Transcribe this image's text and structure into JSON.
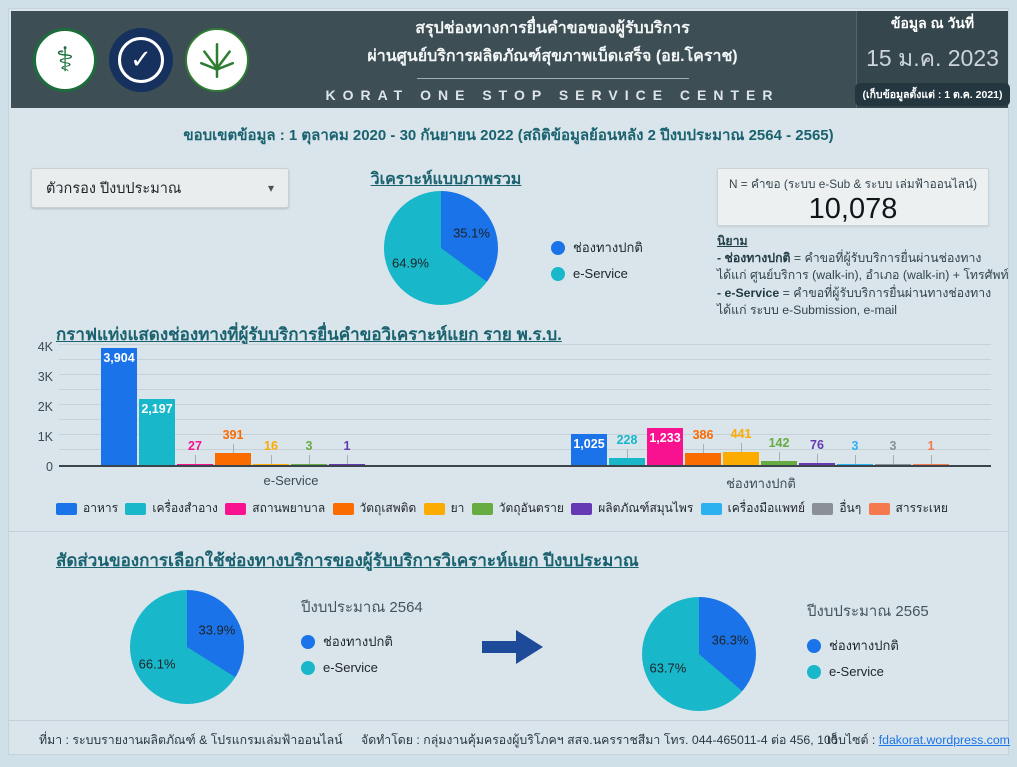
{
  "header": {
    "title_line1": "สรุปช่องทางการยื่นคำขอของผู้รับบริการ",
    "title_line2": "ผ่านศูนย์บริการผลิตภัณฑ์สุขภาพเบ็ดเสร็จ (อย.โคราช)",
    "title_line3": "KORAT ONE STOP SERVICE CENTER",
    "date_label": "ข้อมูล ณ วันที่",
    "date_value": "15 ม.ค. 2023",
    "date_note": "(เก็บข้อมูลตั้งแต่ : 1 ต.ค. 2021)",
    "logos": [
      {
        "name": "moph-logo"
      },
      {
        "name": "fda-logo"
      },
      {
        "name": "cannabis-center-logo"
      }
    ]
  },
  "scope_text": "ขอบเขตข้อมูล : 1 ตุลาคม 2020 - 30 กันยายน 2022 (สถิติข้อมูลย้อนหลัง 2 ปีงบประมาณ 2564 - 2565)",
  "filter": {
    "label": "ตัวกรอง ปีงบประมาณ",
    "caret": "▾"
  },
  "overview": {
    "n_label": "N = คำขอ (ระบบ e-Sub & ระบบ เล่มฟ้าออนไลน์)",
    "n_value": "10,078",
    "definitions": {
      "heading": "นิยาม",
      "item1_term": "- ช่องทางปกติ",
      "item1_text": " = คำขอที่ผู้รับบริการยื่นผ่านช่องทาง ได้แก่ ศูนย์บริการ (walk-in), อำเภอ (walk-in) + โทรศัพท์",
      "item2_term": "- e-Service",
      "item2_text": " = คำขอที่ผู้รับบริการยื่นผ่านทางช่องทาง ได้แก่ ระบบ e-Submission, e-mail"
    }
  },
  "sections": {
    "comparison_title": "สัดส่วนของการเลือกใช้ช่องทางบริการของผู้รับบริการวิเคราะห์แยก ปีงบประมาณ"
  },
  "footer": {
    "source": "ที่มา : ระบบรายงานผลิตภัณฑ์ & โปรแกรมเล่มฟ้าออนไลน์",
    "prepared_by": "จัดทำโดย : กลุ่มงานคุ้มครองผู้บริโภคฯ สสจ.นครราชสีมา โทร. 044-465011-4 ต่อ 456, 106",
    "website_label": "เว็บไซต์ : ",
    "website_link": "fdakorat.wordpress.com"
  },
  "colors": {
    "header_bg": "#3d4e54",
    "accent_blue": "#1a73e8",
    "accent_teal": "#18b7c9",
    "arrow_navy": "#1d4a99"
  },
  "chart_data": [
    {
      "id": "overall_pie",
      "type": "pie",
      "title": "วิเคราะห์แบบภาพรวม",
      "legend_position": "right",
      "slices": [
        {
          "label": "ช่องทางปกติ",
          "pct": 35.1,
          "color": "#1a73e8"
        },
        {
          "label": "e-Service",
          "pct": 64.9,
          "color": "#18b7c9"
        }
      ]
    },
    {
      "id": "requests_by_act_bar",
      "type": "bar",
      "title": "กราฟแท่งแสดงช่องทางที่ผู้รับบริการยื่นคำขอวิเคราะห์แยก ราย พ.ร.บ.",
      "ylim": [
        0,
        4000
      ],
      "yticks": [
        "0",
        "1K",
        "2K",
        "3K",
        "4K"
      ],
      "grid": true,
      "legend_position": "bottom",
      "categories": [
        "อาหาร",
        "เครื่องสำอาง",
        "สถานพยาบาล",
        "วัตถุเสพติด",
        "ยา",
        "วัตถุอันตราย",
        "ผลิตภัณฑ์สมุนไพร",
        "เครื่องมือแพทย์",
        "อื่นๆ",
        "สารระเหย"
      ],
      "category_colors": [
        "#1a73e8",
        "#18b7c9",
        "#f8128f",
        "#fa6b00",
        "#fcab00",
        "#67ab43",
        "#6539b3",
        "#2cb1f0",
        "#8a9095",
        "#f5794f"
      ],
      "groups": [
        {
          "label": "e-Service",
          "values": [
            3904,
            2197,
            27,
            391,
            16,
            3,
            1,
            null,
            null,
            null
          ]
        },
        {
          "label": "ช่องทางปกติ",
          "values": [
            1025,
            228,
            1233,
            386,
            441,
            142,
            76,
            3,
            3,
            1
          ]
        }
      ]
    },
    {
      "id": "pie_fy2564",
      "type": "pie",
      "title": "ปีงบประมาณ 2564",
      "legend_position": "right",
      "slices": [
        {
          "label": "ช่องทางปกติ",
          "pct": 33.9,
          "color": "#1a73e8"
        },
        {
          "label": "e-Service",
          "pct": 66.1,
          "color": "#18b7c9"
        }
      ]
    },
    {
      "id": "pie_fy2565",
      "type": "pie",
      "title": "ปีงบประมาณ 2565",
      "legend_position": "right",
      "slices": [
        {
          "label": "ช่องทางปกติ",
          "pct": 36.3,
          "color": "#1a73e8"
        },
        {
          "label": "e-Service",
          "pct": 63.7,
          "color": "#18b7c9"
        }
      ]
    }
  ]
}
